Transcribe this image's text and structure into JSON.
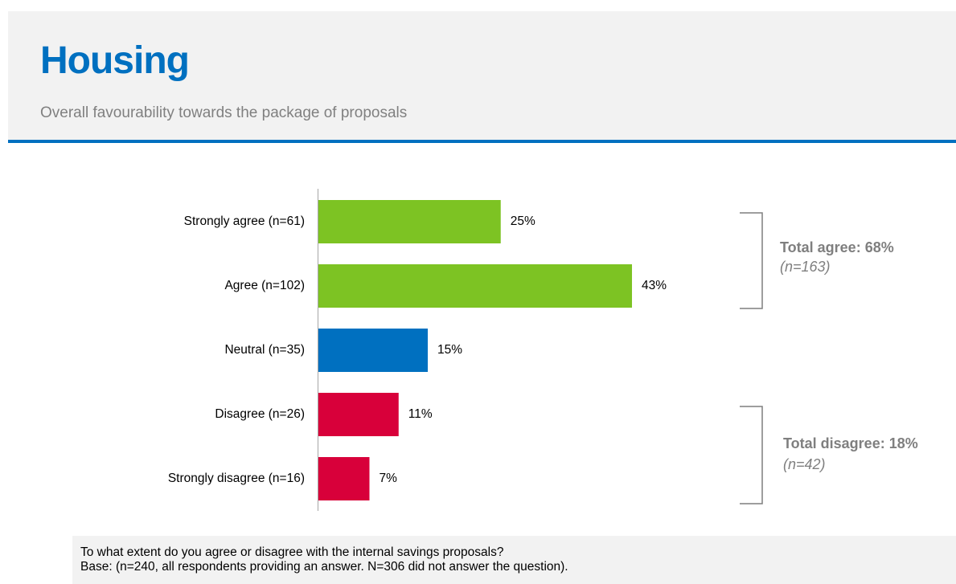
{
  "header": {
    "title": "Housing",
    "subtitle": "Overall favourability towards the package of proposals"
  },
  "chart_data": {
    "type": "bar",
    "orientation": "horizontal",
    "categories": [
      "Strongly agree (n=61)",
      "Agree (n=102)",
      "Neutral (n=35)",
      "Disagree (n=26)",
      "Strongly disagree (n=16)"
    ],
    "values": [
      25,
      43,
      15,
      11,
      7
    ],
    "value_labels": [
      "25%",
      "43%",
      "15%",
      "11%",
      "7%"
    ],
    "bar_colors": [
      "#7dc323",
      "#7dc323",
      "#0070c0",
      "#d8003a",
      "#d8003a"
    ],
    "unit": "%",
    "grid": false,
    "legend": "none"
  },
  "brackets": {
    "agree": {
      "title": "Total agree: 68%",
      "n": "(n=163)"
    },
    "disagree": {
      "title": "Total disagree: 18%",
      "n": "(n=42)"
    }
  },
  "footer": {
    "question": "To what extent do you agree or disagree with the internal savings proposals?",
    "base": "Base: (n=240, all respondents providing an answer. N=306 did not answer the question)."
  },
  "colors": {
    "accent": "#0070c0",
    "agree": "#7dc323",
    "neutral": "#0070c0",
    "disagree": "#d8003a",
    "muted_text": "#808080"
  }
}
